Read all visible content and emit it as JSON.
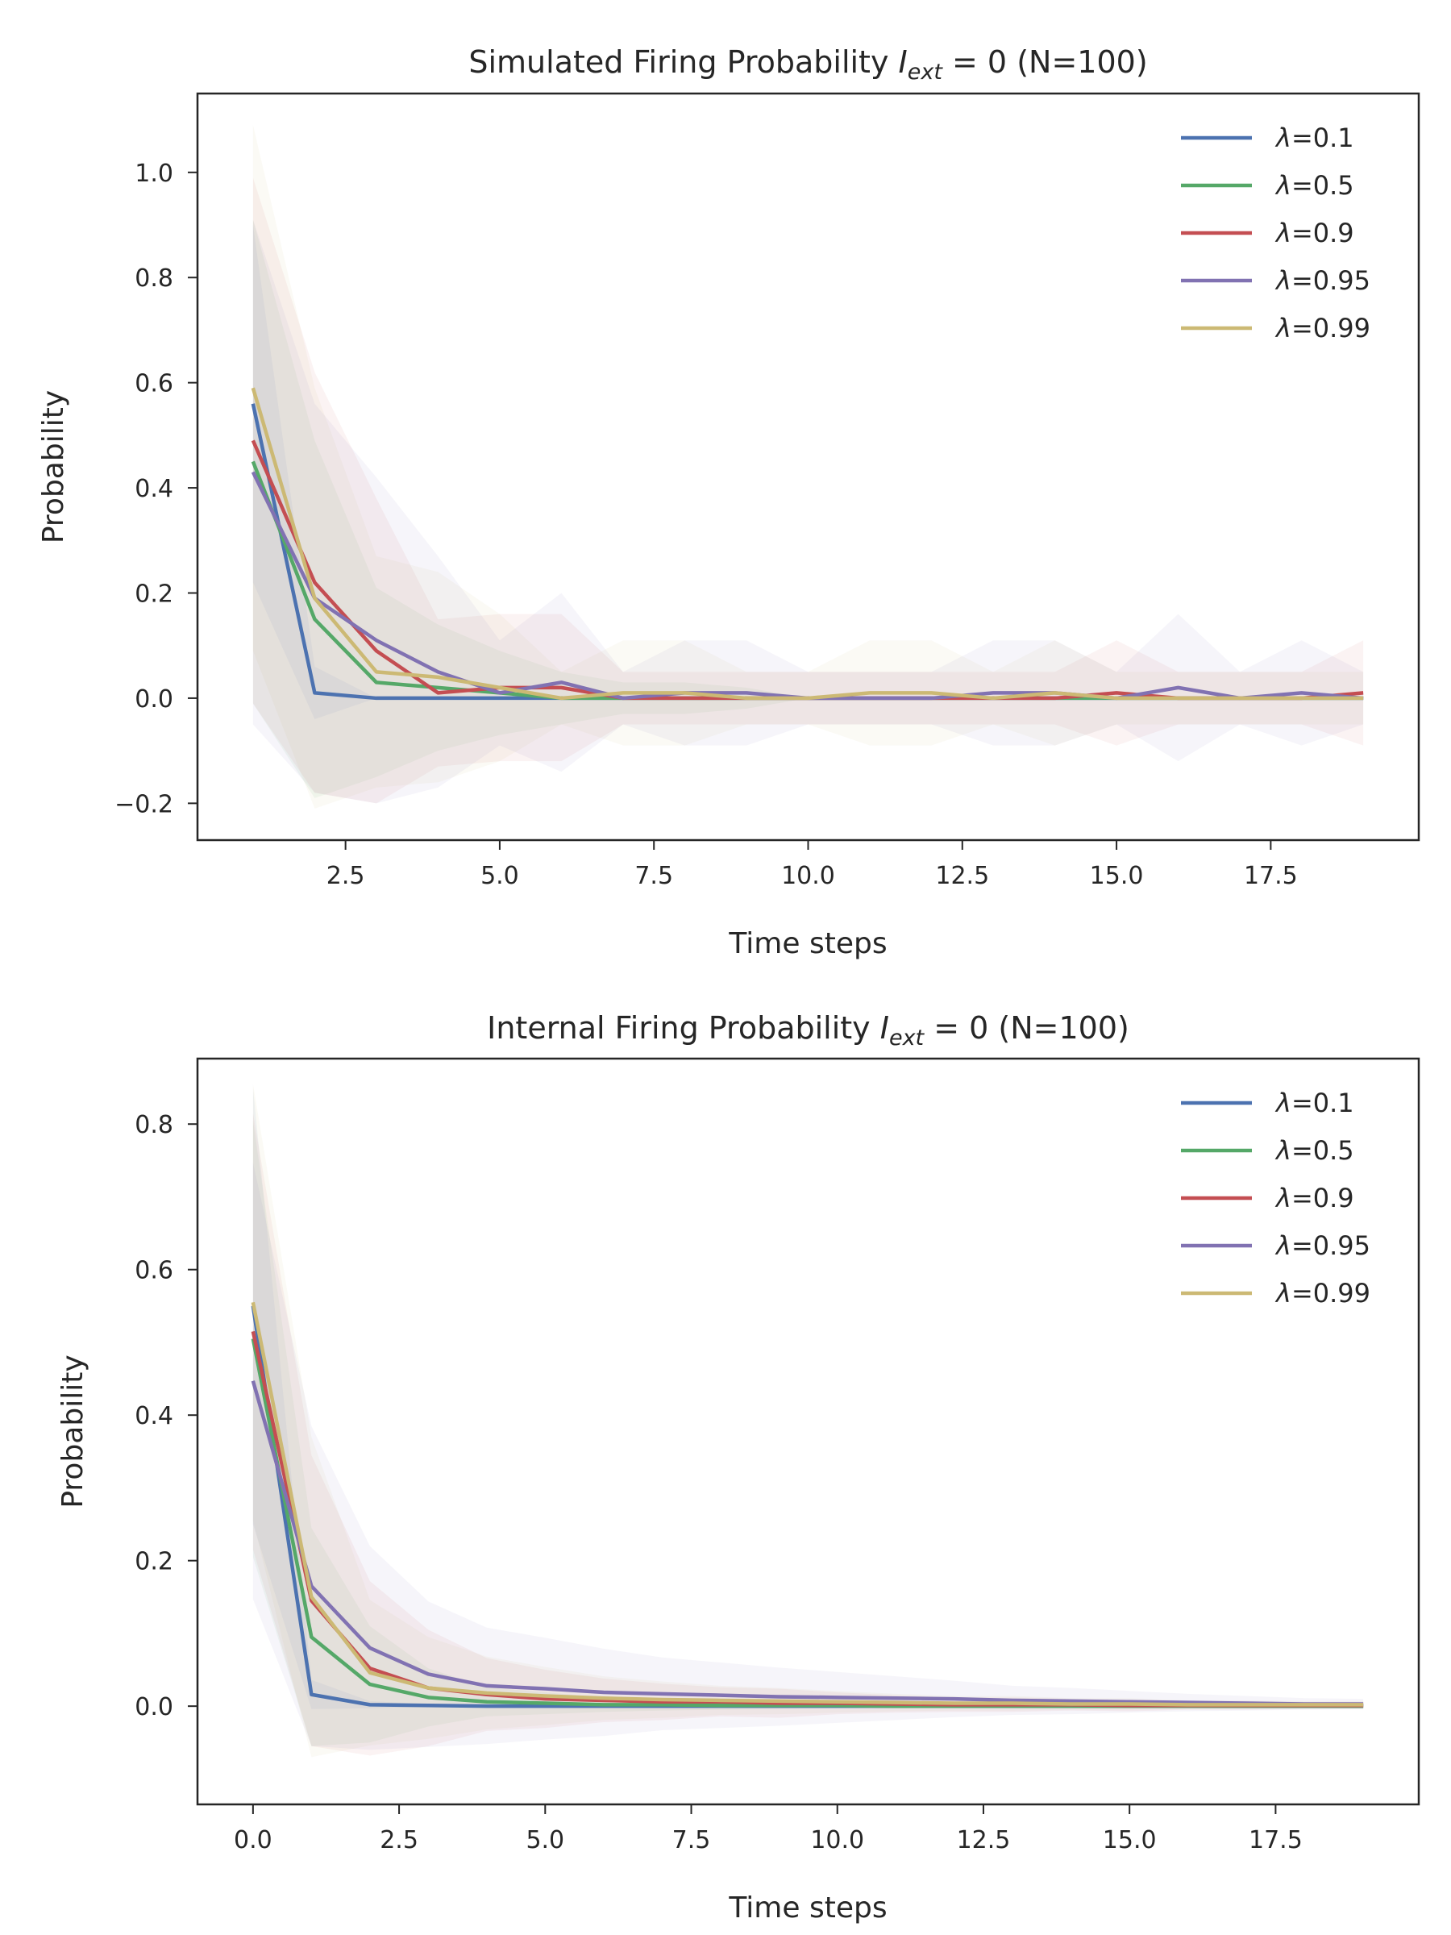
{
  "chart_data": [
    {
      "type": "line",
      "title": "Simulated Firing Probability",
      "title_math": {
        "base": "I",
        "sub": "ext",
        "rest": " = 0"
      },
      "title_suffix": "  (N=100)",
      "xlabel": "Time steps",
      "ylabel": "Probability",
      "xlim": [
        0.1,
        19.9
      ],
      "ylim": [
        -0.27,
        1.15
      ],
      "xticks": [
        "2.5",
        "5.0",
        "7.5",
        "10.0",
        "12.5",
        "15.0",
        "17.5"
      ],
      "xtick_values": [
        2.5,
        5.0,
        7.5,
        10.0,
        12.5,
        15.0,
        17.5
      ],
      "yticks": [
        "−0.2",
        "0.0",
        "0.2",
        "0.4",
        "0.6",
        "0.8",
        "1.0"
      ],
      "ytick_values": [
        -0.2,
        0.0,
        0.2,
        0.4,
        0.6,
        0.8,
        1.0
      ],
      "grid": false,
      "legend": "top-right",
      "x": [
        1,
        2,
        3,
        4,
        5,
        6,
        7,
        8,
        9,
        10,
        11,
        12,
        13,
        14,
        15,
        16,
        17,
        18,
        19
      ],
      "series": [
        {
          "label_prefix": "λ",
          "label_value": "=0.1",
          "color": "#4c72b0",
          "values": [
            0.56,
            0.01,
            0.0,
            0.0,
            0.0,
            0.0,
            0.0,
            0.0,
            0.0,
            0.0,
            0.0,
            0.0,
            0.0,
            0.0,
            0.0,
            0.0,
            0.0,
            0.0,
            0.0
          ],
          "band": [
            0.34,
            0.05,
            0.0,
            0.0,
            0.0,
            0.0,
            0.0,
            0.0,
            0.0,
            0.0,
            0.0,
            0.0,
            0.0,
            0.0,
            0.0,
            0.0,
            0.0,
            0.0,
            0.0
          ]
        },
        {
          "label_prefix": "λ",
          "label_value": "=0.5",
          "color": "#55a868",
          "values": [
            0.45,
            0.15,
            0.03,
            0.02,
            0.01,
            0.0,
            0.0,
            0.0,
            0.0,
            0.0,
            0.0,
            0.0,
            0.0,
            0.0,
            0.0,
            0.0,
            0.0,
            0.0,
            0.0
          ],
          "band": [
            0.46,
            0.34,
            0.18,
            0.12,
            0.08,
            0.05,
            0.03,
            0.03,
            0.02,
            0.0,
            0.0,
            0.0,
            0.0,
            0.0,
            0.0,
            0.0,
            0.0,
            0.0,
            0.0
          ]
        },
        {
          "label_prefix": "λ",
          "label_value": "=0.9",
          "color": "#c44e52",
          "values": [
            0.49,
            0.22,
            0.09,
            0.01,
            0.02,
            0.02,
            0.0,
            0.0,
            0.0,
            0.0,
            0.0,
            0.0,
            0.0,
            0.0,
            0.01,
            0.0,
            0.0,
            0.0,
            0.01
          ],
          "band": [
            0.5,
            0.4,
            0.29,
            0.14,
            0.14,
            0.14,
            0.05,
            0.05,
            0.05,
            0.05,
            0.05,
            0.05,
            0.05,
            0.05,
            0.1,
            0.05,
            0.05,
            0.05,
            0.1
          ]
        },
        {
          "label_prefix": "λ",
          "label_value": "=0.95",
          "color": "#8172b2",
          "values": [
            0.43,
            0.19,
            0.11,
            0.05,
            0.01,
            0.03,
            0.0,
            0.01,
            0.01,
            0.0,
            0.0,
            0.0,
            0.01,
            0.01,
            0.0,
            0.02,
            0.0,
            0.01,
            0.0
          ],
          "band": [
            0.48,
            0.37,
            0.31,
            0.22,
            0.1,
            0.17,
            0.05,
            0.1,
            0.1,
            0.05,
            0.05,
            0.05,
            0.1,
            0.1,
            0.05,
            0.14,
            0.05,
            0.1,
            0.05
          ]
        },
        {
          "label_prefix": "λ",
          "label_value": "=0.99",
          "color": "#ccb974",
          "values": [
            0.59,
            0.19,
            0.05,
            0.04,
            0.02,
            0.0,
            0.01,
            0.01,
            0.0,
            0.0,
            0.01,
            0.01,
            0.0,
            0.01,
            0.0,
            0.0,
            0.0,
            0.0,
            0.0
          ],
          "band": [
            0.5,
            0.4,
            0.22,
            0.2,
            0.14,
            0.05,
            0.1,
            0.1,
            0.05,
            0.05,
            0.1,
            0.1,
            0.05,
            0.1,
            0.05,
            0.05,
            0.05,
            0.05,
            0.05
          ]
        }
      ]
    },
    {
      "type": "line",
      "title": "Internal Firing Probability",
      "title_math": {
        "base": "I",
        "sub": "ext",
        "rest": " = 0"
      },
      "title_suffix": " (N=100)",
      "xlabel": "Time steps",
      "ylabel": "Probability",
      "xlim": [
        -0.95,
        19.95
      ],
      "ylim": [
        -0.135,
        0.89
      ],
      "xticks": [
        "0.0",
        "2.5",
        "5.0",
        "7.5",
        "10.0",
        "12.5",
        "15.0",
        "17.5"
      ],
      "xtick_values": [
        0.0,
        2.5,
        5.0,
        7.5,
        10.0,
        12.5,
        15.0,
        17.5
      ],
      "yticks": [
        "0.0",
        "0.2",
        "0.4",
        "0.6",
        "0.8"
      ],
      "ytick_values": [
        0.0,
        0.2,
        0.4,
        0.6,
        0.8
      ],
      "grid": false,
      "legend": "top-right",
      "x": [
        0,
        1,
        2,
        3,
        4,
        5,
        6,
        7,
        8,
        9,
        10,
        11,
        12,
        13,
        14,
        15,
        16,
        17,
        18,
        19
      ],
      "series": [
        {
          "label_prefix": "λ",
          "label_value": "=0.1",
          "color": "#4c72b0",
          "values": [
            0.55,
            0.016,
            0.002,
            0.001,
            0.0,
            0.0,
            0.0,
            0.0,
            0.0,
            0.0,
            0.0,
            0.0,
            0.0,
            0.0,
            0.0,
            0.0,
            0.0,
            0.0,
            0.0,
            0.0
          ],
          "band": [
            0.3,
            0.02,
            0.005,
            0.002,
            0.0,
            0.0,
            0.0,
            0.0,
            0.0,
            0.0,
            0.0,
            0.0,
            0.0,
            0.0,
            0.0,
            0.0,
            0.0,
            0.0,
            0.0,
            0.0
          ]
        },
        {
          "label_prefix": "λ",
          "label_value": "=0.5",
          "color": "#55a868",
          "values": [
            0.505,
            0.095,
            0.03,
            0.012,
            0.006,
            0.004,
            0.002,
            0.002,
            0.001,
            0.001,
            0.001,
            0.0,
            0.0,
            0.0,
            0.0,
            0.0,
            0.0,
            0.0,
            0.0,
            0.0
          ],
          "band": [
            0.3,
            0.15,
            0.08,
            0.04,
            0.02,
            0.015,
            0.01,
            0.008,
            0.006,
            0.005,
            0.004,
            0.003,
            0.002,
            0.002,
            0.001,
            0.001,
            0.001,
            0.001,
            0.001,
            0.001
          ]
        },
        {
          "label_prefix": "λ",
          "label_value": "=0.9",
          "color": "#c44e52",
          "values": [
            0.515,
            0.145,
            0.052,
            0.025,
            0.016,
            0.01,
            0.008,
            0.006,
            0.006,
            0.004,
            0.004,
            0.003,
            0.002,
            0.002,
            0.002,
            0.001,
            0.001,
            0.001,
            0.001,
            0.001
          ],
          "band": [
            0.3,
            0.2,
            0.12,
            0.08,
            0.05,
            0.04,
            0.03,
            0.025,
            0.02,
            0.02,
            0.015,
            0.012,
            0.01,
            0.01,
            0.008,
            0.008,
            0.006,
            0.006,
            0.005,
            0.005
          ]
        },
        {
          "label_prefix": "λ",
          "label_value": "=0.95",
          "color": "#8172b2",
          "values": [
            0.447,
            0.165,
            0.08,
            0.044,
            0.028,
            0.024,
            0.019,
            0.017,
            0.015,
            0.013,
            0.012,
            0.011,
            0.01,
            0.008,
            0.007,
            0.006,
            0.005,
            0.004,
            0.003,
            0.003
          ],
          "band": [
            0.3,
            0.22,
            0.14,
            0.1,
            0.08,
            0.07,
            0.06,
            0.05,
            0.045,
            0.04,
            0.035,
            0.03,
            0.025,
            0.02,
            0.018,
            0.015,
            0.012,
            0.01,
            0.008,
            0.007
          ]
        },
        {
          "label_prefix": "λ",
          "label_value": "=0.99",
          "color": "#ccb974",
          "values": [
            0.555,
            0.15,
            0.046,
            0.025,
            0.018,
            0.014,
            0.011,
            0.009,
            0.008,
            0.007,
            0.006,
            0.005,
            0.004,
            0.004,
            0.003,
            0.003,
            0.002,
            0.002,
            0.002,
            0.002
          ],
          "band": [
            0.3,
            0.22,
            0.1,
            0.07,
            0.05,
            0.04,
            0.03,
            0.025,
            0.02,
            0.018,
            0.015,
            0.012,
            0.01,
            0.01,
            0.008,
            0.008,
            0.006,
            0.006,
            0.005,
            0.005
          ]
        }
      ]
    }
  ]
}
